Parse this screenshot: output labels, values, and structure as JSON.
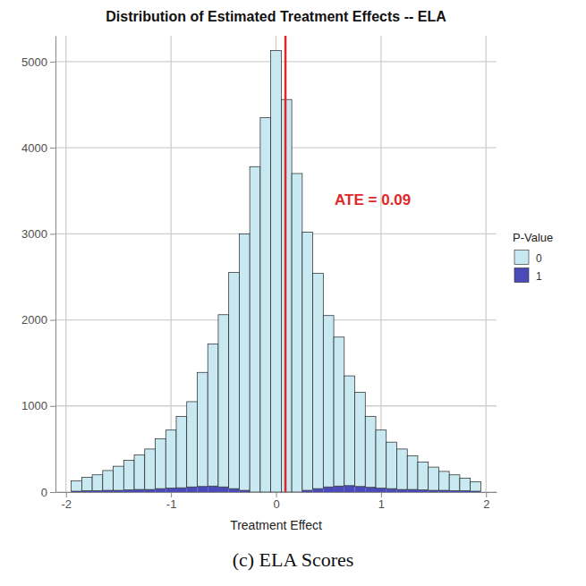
{
  "chart_data": {
    "type": "histogram",
    "title": "Distribution of Estimated Treatment Effects -- ELA",
    "x_label": "Treatment Effect",
    "caption": "(c) ELA Scores",
    "legend_title": "P-Value",
    "annotation": "ATE = 0.09",
    "vline": 0.09,
    "vline_color": "#e0282a",
    "bins": [
      -1.95,
      -1.85,
      -1.75,
      -1.65,
      -1.55,
      -1.45,
      -1.35,
      -1.25,
      -1.15,
      -1.05,
      -0.95,
      -0.85,
      -0.75,
      -0.65,
      -0.55,
      -0.45,
      -0.35,
      -0.25,
      -0.15,
      -0.05,
      0.05,
      0.15,
      0.25,
      0.35,
      0.45,
      0.55,
      0.65,
      0.75,
      0.85,
      0.95,
      1.05,
      1.15,
      1.25,
      1.35,
      1.45,
      1.55,
      1.65,
      1.75,
      1.85,
      1.95
    ],
    "series": [
      {
        "name": "0",
        "color": "#c8e9f1",
        "values": [
          120,
          155,
          185,
          230,
          280,
          345,
          400,
          470,
          580,
          675,
          830,
          990,
          1325,
          1650,
          2000,
          2510,
          2980,
          3780,
          4350,
          5130,
          4560,
          3700,
          3000,
          2500,
          1990,
          1730,
          1275,
          1095,
          825,
          675,
          540,
          470,
          390,
          325,
          270,
          220,
          185,
          145,
          110
        ]
      },
      {
        "name": "1",
        "color": "#4a4ab8",
        "values": [
          10,
          15,
          15,
          20,
          20,
          25,
          30,
          30,
          40,
          45,
          50,
          60,
          65,
          70,
          60,
          40,
          20,
          0,
          0,
          0,
          0,
          0,
          20,
          40,
          60,
          70,
          75,
          65,
          55,
          45,
          40,
          30,
          30,
          25,
          20,
          20,
          15,
          15,
          10
        ]
      }
    ],
    "stacked": true,
    "legend": "right",
    "grid": true,
    "xlim": [
      -2.1,
      2.1
    ],
    "xticks": [
      -2,
      -1,
      0,
      1,
      2
    ],
    "ylim": [
      0,
      5300
    ],
    "yticks": [
      0,
      1000,
      2000,
      3000,
      4000,
      5000
    ]
  }
}
